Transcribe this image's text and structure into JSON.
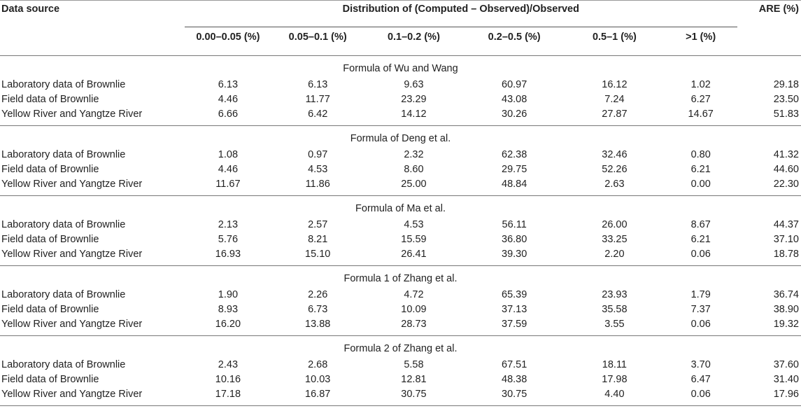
{
  "headers": {
    "data_source": "Data source",
    "distribution": "Distribution of (Computed – Observed)/Observed",
    "are": "ARE (%)",
    "bins": [
      "0.00–0.05 (%)",
      "0.05–0.1 (%)",
      "0.1–0.2 (%)",
      "0.2–0.5 (%)",
      "0.5–1 (%)",
      ">1 (%)"
    ]
  },
  "groups": [
    {
      "title": "Formula of Wu and Wang",
      "rows": [
        {
          "source": "Laboratory data of Brownlie",
          "values": [
            "6.13",
            "6.13",
            "9.63",
            "60.97",
            "16.12",
            "1.02"
          ],
          "are": "29.18"
        },
        {
          "source": "Field data of Brownlie",
          "values": [
            "4.46",
            "11.77",
            "23.29",
            "43.08",
            "7.24",
            "6.27"
          ],
          "are": "23.50"
        },
        {
          "source": "Yellow River and Yangtze River",
          "values": [
            "6.66",
            "6.42",
            "14.12",
            "30.26",
            "27.87",
            "14.67"
          ],
          "are": "51.83"
        }
      ]
    },
    {
      "title": "Formula of Deng et al.",
      "rows": [
        {
          "source": "Laboratory data of Brownlie",
          "values": [
            "1.08",
            "0.97",
            "2.32",
            "62.38",
            "32.46",
            "0.80"
          ],
          "are": "41.32"
        },
        {
          "source": "Field data of Brownlie",
          "values": [
            "4.46",
            "4.53",
            "8.60",
            "29.75",
            "52.26",
            "6.21"
          ],
          "are": "44.60"
        },
        {
          "source": "Yellow River and Yangtze River",
          "values": [
            "11.67",
            "11.86",
            "25.00",
            "48.84",
            "2.63",
            "0.00"
          ],
          "are": "22.30"
        }
      ]
    },
    {
      "title": "Formula of Ma et al.",
      "rows": [
        {
          "source": "Laboratory data of Brownlie",
          "values": [
            "2.13",
            "2.57",
            "4.53",
            "56.11",
            "26.00",
            "8.67"
          ],
          "are": "44.37"
        },
        {
          "source": "Field data of Brownlie",
          "values": [
            "5.76",
            "8.21",
            "15.59",
            "36.80",
            "33.25",
            "6.21"
          ],
          "are": "37.10"
        },
        {
          "source": "Yellow River and Yangtze River",
          "values": [
            "16.93",
            "15.10",
            "26.41",
            "39.30",
            "2.20",
            "0.06"
          ],
          "are": "18.78"
        }
      ]
    },
    {
      "title": "Formula 1 of Zhang et al.",
      "rows": [
        {
          "source": "Laboratory data of Brownlie",
          "values": [
            "1.90",
            "2.26",
            "4.72",
            "65.39",
            "23.93",
            "1.79"
          ],
          "are": "36.74"
        },
        {
          "source": "Field data of Brownlie",
          "values": [
            "8.93",
            "6.73",
            "10.09",
            "37.13",
            "35.58",
            "7.37"
          ],
          "are": "38.90"
        },
        {
          "source": "Yellow River and Yangtze River",
          "values": [
            "16.20",
            "13.88",
            "28.73",
            "37.59",
            "3.55",
            "0.06"
          ],
          "are": "19.32"
        }
      ]
    },
    {
      "title": "Formula 2 of Zhang et al.",
      "rows": [
        {
          "source": "Laboratory data of Brownlie",
          "values": [
            "2.43",
            "2.68",
            "5.58",
            "67.51",
            "18.11",
            "3.70"
          ],
          "are": "37.60"
        },
        {
          "source": "Field data of Brownlie",
          "values": [
            "10.16",
            "10.03",
            "12.81",
            "48.38",
            "17.98",
            "6.47"
          ],
          "are": "31.40"
        },
        {
          "source": "Yellow River and Yangtze River",
          "values": [
            "17.18",
            "16.87",
            "30.75",
            "30.75",
            "4.40",
            "0.06"
          ],
          "are": "17.96"
        }
      ]
    }
  ]
}
